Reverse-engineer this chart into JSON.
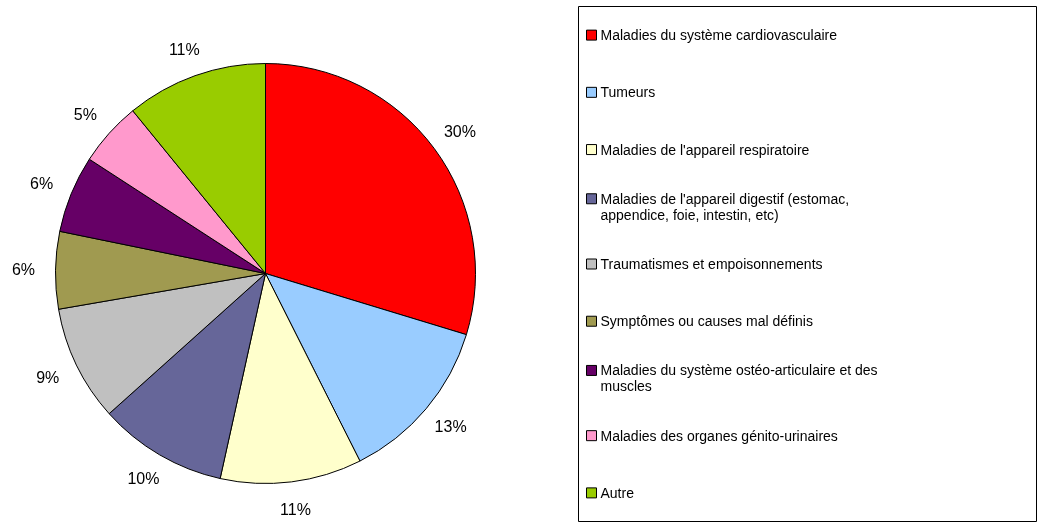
{
  "chart_data": {
    "type": "pie",
    "categories": [
      "Maladies du système cardiovasculaire",
      "Tumeurs",
      "Maladies de l'appareil respiratoire",
      "Maladies de l'appareil digestif (estomac, appendice, foie, intestin, etc)",
      "Traumatismes et empoisonnements",
      "Symptômes ou causes mal définis",
      "Maladies du système ostéo-articulaire et des muscles",
      "Maladies des organes génito-urinaires",
      "Autre"
    ],
    "values": [
      30,
      13,
      11,
      10,
      9,
      6,
      6,
      5,
      11
    ],
    "colors": [
      "#ff0000",
      "#99ccff",
      "#ffffcc",
      "#666699",
      "#c0c0c0",
      "#a09a50",
      "#660066",
      "#ff99cc",
      "#99cc00"
    ],
    "value_labels": [
      "30%",
      "13%",
      "11%",
      "10%",
      "9%",
      "6%",
      "6%",
      "5%",
      "11%"
    ],
    "legend": "right"
  }
}
